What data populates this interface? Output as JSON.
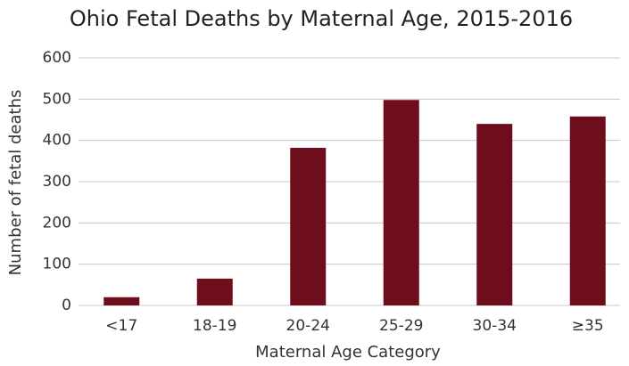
{
  "chart_data": {
    "type": "bar",
    "title": "Ohio Fetal Deaths by Maternal Age, 2015-2016",
    "x_label": "Maternal Age Category",
    "y_label": "Number of fetal deaths",
    "categories": [
      "<17",
      "18-19",
      "20-24",
      "25-29",
      "30-34",
      "≥35"
    ],
    "values": [
      20,
      65,
      382,
      498,
      440,
      458
    ],
    "color": "#6e0d1c",
    "ylim": [
      0,
      600
    ],
    "yticks": [
      0,
      100,
      200,
      300,
      400,
      500,
      600
    ],
    "grid": true
  }
}
